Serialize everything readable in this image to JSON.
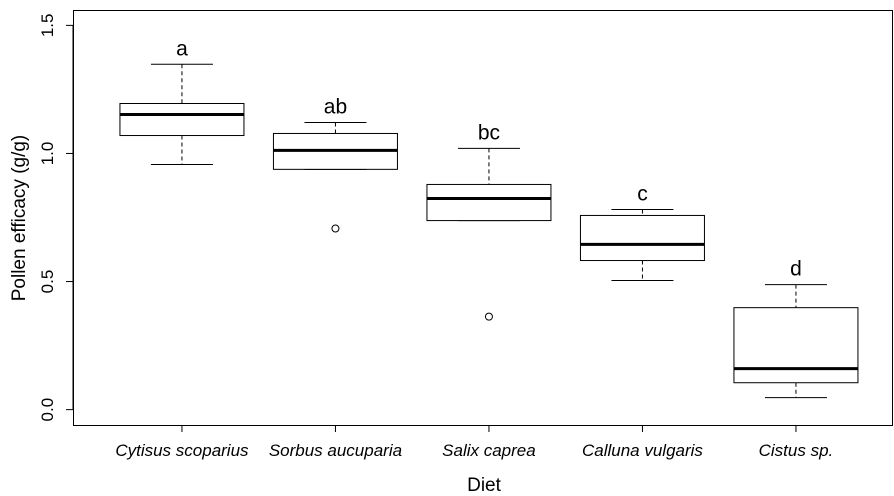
{
  "chart_data": {
    "type": "boxplot",
    "xlabel": "Diet",
    "ylabel": "Pollen efficacy (g/g)",
    "categories": [
      "Cytisus scoparius",
      "Sorbus aucuparia",
      "Salix caprea",
      "Calluna vulgaris",
      "Cistus sp."
    ],
    "whisker_high": [
      1.348,
      1.121,
      1.02,
      0.781,
      0.488
    ],
    "q3": [
      1.195,
      1.078,
      0.879,
      0.758,
      0.398
    ],
    "median": [
      1.152,
      1.012,
      0.824,
      0.645,
      0.16
    ],
    "q1": [
      1.07,
      0.938,
      0.738,
      0.582,
      0.105
    ],
    "whisker_low": [
      0.957,
      0.938,
      0.738,
      0.504,
      0.047
    ],
    "outliers": [
      [],
      [
        0.707
      ],
      [
        0.363
      ],
      [],
      []
    ],
    "annotations": [
      "a",
      "ab",
      "bc",
      "c",
      "d"
    ],
    "color": "#000000",
    "ylim": [
      -0.06,
      1.56
    ],
    "yticks": [
      {
        "value": 0,
        "label": "0.0"
      },
      0.5,
      {
        "value": 1,
        "label": "1.0"
      },
      1.5
    ]
  }
}
